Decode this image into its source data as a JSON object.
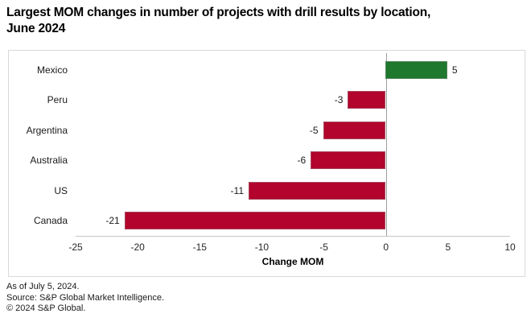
{
  "title": "Largest MOM changes in number of projects with drill results by location,\nJune 2024",
  "chart_data": {
    "type": "bar",
    "orientation": "horizontal",
    "categories": [
      "Mexico",
      "Peru",
      "Argentina",
      "Australia",
      "US",
      "Canada"
    ],
    "values": [
      5,
      -3,
      -5,
      -6,
      -11,
      -21
    ],
    "data_labels": [
      "5",
      "-3",
      "-5",
      "-6",
      "-11",
      "-21"
    ],
    "title": "Largest MOM changes in number of projects with drill results by location, June 2024",
    "xlabel": "Change MOM",
    "ylabel": "",
    "xlim": [
      -25,
      10
    ],
    "xticks": [
      -25,
      -20,
      -15,
      -10,
      -5,
      0,
      5,
      10
    ],
    "grid": false,
    "legend": "none",
    "colors": {
      "positive_bar": "#1e782d",
      "negative_bar": "#b2042c",
      "zero_line": "#9e9e9e",
      "axis_line": "#c6c6c6",
      "box_border": "#d9d9d9"
    }
  },
  "footer": {
    "as_of": "As of July 5, 2024.",
    "source": "Source: S&P Global Market Intelligence.",
    "copyright": "© 2024 S&P Global."
  }
}
